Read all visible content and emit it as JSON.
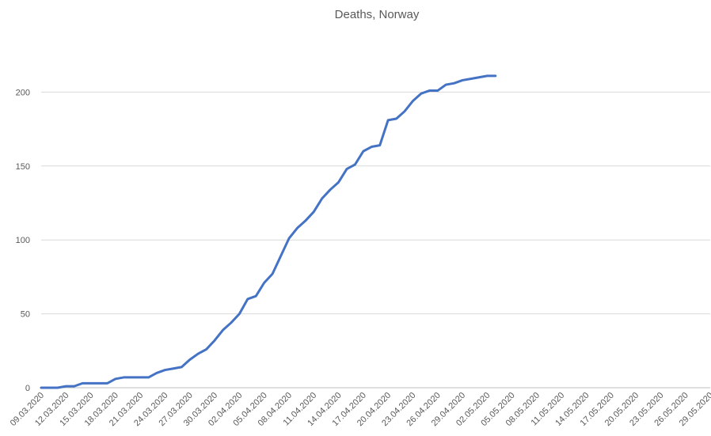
{
  "chart_data": {
    "type": "line",
    "title": "Deaths, Norway",
    "categories": [
      "09.03.2020",
      null,
      null,
      "12.03.2020",
      null,
      null,
      "15.03.2020",
      null,
      null,
      "18.03.2020",
      null,
      null,
      "21.03.2020",
      null,
      null,
      "24.03.2020",
      null,
      null,
      "27.03.2020",
      null,
      null,
      "30.03.2020",
      null,
      null,
      "02.04.2020",
      null,
      null,
      "05.04.2020",
      null,
      null,
      "08.04.2020",
      null,
      null,
      "11.04.2020",
      null,
      null,
      "14.04.2020",
      null,
      null,
      "17.04.2020",
      null,
      null,
      "20.04.2020",
      null,
      null,
      "23.04.2020",
      null,
      null,
      "26.04.2020",
      null,
      null,
      "29.04.2020",
      null,
      null,
      "02.05.2020",
      null,
      null,
      "05.05.2020",
      null,
      null,
      "08.05.2020",
      null,
      null,
      "11.05.2020",
      null,
      null,
      "14.05.2020",
      null,
      null,
      "17.05.2020",
      null,
      null,
      "20.05.2020",
      null,
      null,
      "23.05.2020",
      null,
      null,
      "26.05.2020",
      null,
      null,
      "29.05.2020"
    ],
    "series": [
      {
        "name": "Deaths",
        "color": "#4472c4",
        "values": [
          0,
          0,
          0,
          1,
          1,
          3,
          3,
          3,
          3,
          6,
          7,
          7,
          7,
          7,
          10,
          12,
          13,
          14,
          19,
          23,
          26,
          32,
          39,
          44,
          50,
          60,
          62,
          71,
          77,
          89,
          101,
          108,
          113,
          119,
          128,
          134,
          139,
          148,
          151,
          160,
          163,
          164,
          181,
          182,
          187,
          194,
          199,
          201,
          201,
          205,
          206,
          208,
          209,
          210,
          211,
          211,
          null,
          null,
          null,
          null,
          null,
          null,
          null,
          null,
          null,
          null,
          null,
          null,
          null,
          null,
          null,
          null,
          null,
          null,
          null,
          null,
          null,
          null,
          null,
          null,
          null,
          null
        ]
      }
    ],
    "ylim": [
      0,
      250
    ],
    "yticks": [
      0,
      50,
      100,
      150,
      200
    ],
    "grid": true
  }
}
